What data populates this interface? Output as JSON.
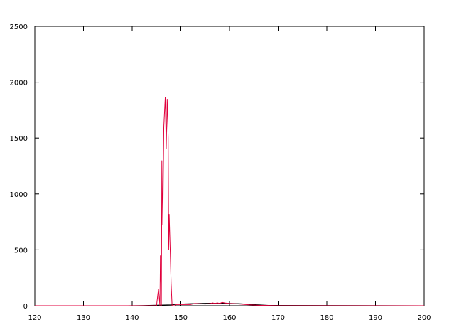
{
  "chart_data": {
    "type": "line",
    "title": "",
    "xlabel": "",
    "ylabel": "",
    "xlim": [
      120,
      200
    ],
    "ylim": [
      0,
      2500
    ],
    "x_ticks": [
      120,
      130,
      140,
      150,
      160,
      170,
      180,
      190,
      200
    ],
    "y_ticks": [
      0,
      500,
      1000,
      1500,
      2000,
      2500
    ],
    "x_tick_labels": [
      "120",
      "130",
      "140",
      "150",
      "160",
      "170",
      "180",
      "190",
      "200"
    ],
    "y_tick_labels": [
      "0",
      "500",
      "1000",
      "1500",
      "2000",
      "2500"
    ],
    "grid": false,
    "series": [
      {
        "color": "#e0003c",
        "x": [
          120,
          138,
          145,
          145.4,
          145.7,
          145.8,
          146.0,
          146.1,
          146.3,
          146.5,
          146.8,
          147.0,
          147.2,
          147.4,
          147.5,
          147.6,
          147.8,
          148.0,
          148.2,
          148.4,
          148.6,
          148.8,
          149.0,
          150,
          151,
          152,
          152.8,
          153.5,
          155,
          156,
          156.5,
          157,
          157.5,
          158,
          158.5,
          159,
          160,
          161,
          162,
          164,
          166,
          170,
          200
        ],
        "y": [
          0,
          0,
          0,
          150,
          0,
          450,
          0,
          1300,
          720,
          1600,
          1870,
          1400,
          1850,
          1500,
          500,
          820,
          520,
          200,
          0,
          0,
          0,
          0,
          10,
          10,
          10,
          10,
          20,
          18,
          15,
          18,
          25,
          20,
          25,
          20,
          30,
          25,
          20,
          18,
          15,
          8,
          4,
          0,
          0
        ]
      },
      {
        "color": "#000000",
        "x": [
          120,
          139,
          142,
          145,
          148,
          150,
          153,
          156,
          159,
          162,
          165,
          168,
          200
        ],
        "y": [
          0,
          0,
          2,
          5,
          8,
          15,
          20,
          22,
          22,
          18,
          10,
          3,
          0
        ]
      }
    ]
  }
}
